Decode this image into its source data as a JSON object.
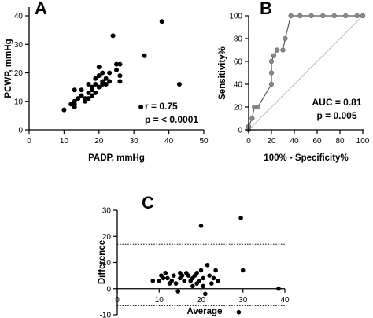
{
  "chart_data": [
    {
      "panel": "A",
      "type": "scatter",
      "xlabel": "PADP, mmHg",
      "ylabel": "PCWP, mmHg",
      "xlim": [
        0,
        50
      ],
      "ylim": [
        0,
        40
      ],
      "xticks": [
        0,
        10,
        20,
        30,
        40,
        50
      ],
      "yticks": [
        0,
        10,
        20,
        30,
        40
      ],
      "annotations": [
        "r = 0.75",
        "p = < 0.0001"
      ],
      "points": [
        [
          10,
          7
        ],
        [
          12,
          9
        ],
        [
          13,
          8
        ],
        [
          13,
          9
        ],
        [
          13,
          10
        ],
        [
          13,
          14
        ],
        [
          14,
          11
        ],
        [
          15,
          12
        ],
        [
          15,
          14
        ],
        [
          16,
          10
        ],
        [
          16,
          11
        ],
        [
          17,
          11
        ],
        [
          17,
          13
        ],
        [
          17,
          16
        ],
        [
          18,
          12
        ],
        [
          18,
          14
        ],
        [
          18,
          15
        ],
        [
          19,
          13
        ],
        [
          19,
          16
        ],
        [
          19,
          18
        ],
        [
          20,
          15
        ],
        [
          20,
          19
        ],
        [
          20,
          22
        ],
        [
          21,
          16
        ],
        [
          21,
          17
        ],
        [
          21,
          20
        ],
        [
          22,
          16
        ],
        [
          22,
          18
        ],
        [
          23,
          17
        ],
        [
          23,
          20
        ],
        [
          24,
          33
        ],
        [
          25,
          21
        ],
        [
          25,
          23
        ],
        [
          26,
          17
        ],
        [
          26,
          19
        ],
        [
          26,
          23
        ],
        [
          32,
          8
        ],
        [
          33,
          26
        ],
        [
          38,
          38
        ],
        [
          43,
          16
        ]
      ]
    },
    {
      "panel": "B",
      "type": "line",
      "xlabel": "100% - Specificity%",
      "ylabel": "Sensitivity%",
      "xlim": [
        0,
        100
      ],
      "ylim": [
        0,
        100
      ],
      "xticks": [
        0,
        20,
        40,
        60,
        80,
        100
      ],
      "yticks": [
        0,
        20,
        40,
        60,
        80,
        100
      ],
      "annotations": [
        "AUC = 0.81",
        "p = 0.005"
      ],
      "roc_points": [
        [
          0,
          0
        ],
        [
          0,
          3
        ],
        [
          3,
          10
        ],
        [
          5,
          20
        ],
        [
          8,
          20
        ],
        [
          20,
          40
        ],
        [
          20,
          50
        ],
        [
          20,
          60
        ],
        [
          22,
          65
        ],
        [
          25,
          70
        ],
        [
          30,
          70
        ],
        [
          32,
          80
        ],
        [
          37,
          100
        ],
        [
          45,
          100
        ],
        [
          55,
          100
        ],
        [
          65,
          100
        ],
        [
          75,
          100
        ],
        [
          85,
          100
        ],
        [
          95,
          100
        ],
        [
          100,
          100
        ]
      ],
      "reference_line": [
        [
          0,
          0
        ],
        [
          100,
          100
        ]
      ]
    },
    {
      "panel": "C",
      "type": "scatter",
      "xlabel": "Average",
      "ylabel": "Difference",
      "xlim": [
        0,
        40
      ],
      "ylim": [
        -10,
        30
      ],
      "xticks": [
        0,
        10,
        20,
        30,
        40
      ],
      "yticks": [
        -10,
        0,
        10,
        20,
        30
      ],
      "reference_lines_y": [
        17,
        -6.5
      ],
      "points": [
        [
          8.5,
          3
        ],
        [
          10,
          3
        ],
        [
          10.5,
          5
        ],
        [
          11,
          4
        ],
        [
          11.5,
          6
        ],
        [
          12,
          4
        ],
        [
          12.5,
          2
        ],
        [
          13,
          3
        ],
        [
          13.5,
          5
        ],
        [
          14,
          2
        ],
        [
          14.5,
          -1
        ],
        [
          15,
          4
        ],
        [
          15,
          6
        ],
        [
          15.5,
          5
        ],
        [
          16,
          3
        ],
        [
          16.5,
          6
        ],
        [
          17,
          5
        ],
        [
          17.5,
          3
        ],
        [
          18,
          1
        ],
        [
          18,
          4
        ],
        [
          18.5,
          5
        ],
        [
          19,
          2
        ],
        [
          19,
          6
        ],
        [
          19.5,
          3
        ],
        [
          20,
          7
        ],
        [
          20,
          24
        ],
        [
          20.5,
          1
        ],
        [
          20.5,
          4
        ],
        [
          21,
          -2
        ],
        [
          21.5,
          9
        ],
        [
          22,
          5
        ],
        [
          22.5,
          2
        ],
        [
          23,
          4
        ],
        [
          23.5,
          7
        ],
        [
          24,
          3
        ],
        [
          29,
          -9
        ],
        [
          29.5,
          27
        ],
        [
          30,
          7
        ],
        [
          38.5,
          0
        ]
      ]
    }
  ]
}
